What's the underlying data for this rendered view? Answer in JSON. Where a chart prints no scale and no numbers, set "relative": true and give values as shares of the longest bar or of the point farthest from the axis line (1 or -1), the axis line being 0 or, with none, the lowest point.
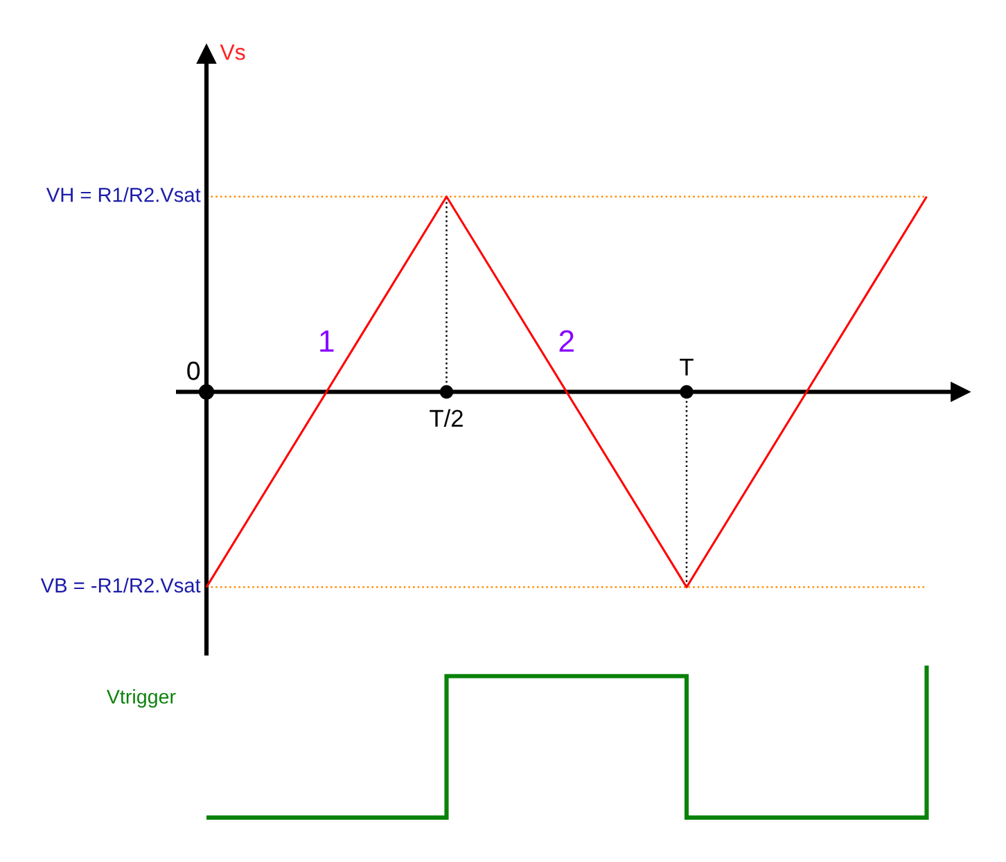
{
  "chart_data": [
    {
      "type": "line",
      "relative": true,
      "ylabel": "Vs",
      "categories": [
        null,
        "T/2",
        "T",
        null
      ],
      "series": [
        {
          "color": "#ff0000",
          "values": [
            -1,
            1,
            -1,
            1
          ]
        }
      ],
      "ref_lines": [
        {
          "axis": "y",
          "value": 1,
          "label": "VH = R1/R2.Vsat",
          "color": "#ff8c00",
          "line_style": "dotted"
        },
        {
          "axis": "y",
          "value": -1,
          "label": "VB = -R1/R2.Vsat",
          "color": "#ff8c00",
          "line_style": "dotted"
        },
        {
          "axis": "x",
          "value": "T/2",
          "color": "#000000",
          "line_style": "dotted"
        },
        {
          "axis": "x",
          "value": "T",
          "color": "#000000",
          "line_style": "dotted"
        }
      ],
      "annotations": [
        "0",
        {
          "text": "1",
          "y": 0
        },
        {
          "text": "2",
          "y": 0
        }
      ]
    },
    {
      "type": "step",
      "relative": true,
      "ylabel": "Vtrigger",
      "categories": [
        null,
        null,
        null,
        null
      ],
      "series": [
        {
          "color": "#0a820a",
          "values": [
            0,
            0.93,
            0,
            1
          ]
        }
      ]
    }
  ]
}
